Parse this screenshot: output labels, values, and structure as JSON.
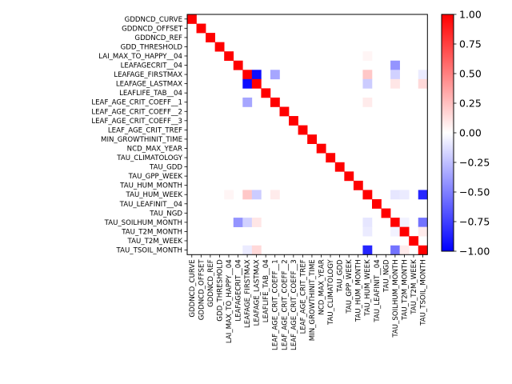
{
  "chart_data": {
    "type": "heatmap",
    "title": "",
    "xlabel": "",
    "ylabel": "",
    "labels": [
      "GDDNCD_CURVE",
      "GDDNCD_OFFSET",
      "GDDNCD_REF",
      "GDD_THRESHOLD",
      "LAI_MAX_TO_HAPPY__04",
      "LEAFAGECRIT__04",
      "LEAFAGE_FIRSTMAX",
      "LEAFAGE_LASTMAX",
      "LEAFLIFE_TAB__04",
      "LEAF_AGE_CRIT_COEFF__1",
      "LEAF_AGE_CRIT_COEFF__2",
      "LEAF_AGE_CRIT_COEFF__3",
      "LEAF_AGE_CRIT_TREF",
      "MIN_GROWTHINIT_TIME",
      "NCD_MAX_YEAR",
      "TAU_CLIMATOLOGY",
      "TAU_GDD",
      "TAU_GPP_WEEK",
      "TAU_HUM_MONTH",
      "TAU_HUM_WEEK",
      "TAU_LEAFINIT__04",
      "TAU_NGD",
      "TAU_SOILHUM_MONTH",
      "TAU_T2M_MONTH",
      "TAU_T2M_WEEK",
      "TAU_TSOIL_MONTH"
    ],
    "offdiagonal": [
      {
        "row": 5,
        "col": 22,
        "value": -0.42
      },
      {
        "row": 22,
        "col": 5,
        "value": -0.42
      },
      {
        "row": 6,
        "col": 7,
        "value": -0.95
      },
      {
        "row": 7,
        "col": 6,
        "value": -0.95
      },
      {
        "row": 6,
        "col": 9,
        "value": -0.35
      },
      {
        "row": 9,
        "col": 6,
        "value": -0.35
      },
      {
        "row": 6,
        "col": 19,
        "value": 0.22
      },
      {
        "row": 19,
        "col": 6,
        "value": 0.22
      },
      {
        "row": 6,
        "col": 22,
        "value": -0.18
      },
      {
        "row": 22,
        "col": 6,
        "value": -0.18
      },
      {
        "row": 6,
        "col": 25,
        "value": -0.08
      },
      {
        "row": 25,
        "col": 6,
        "value": -0.08
      },
      {
        "row": 7,
        "col": 19,
        "value": -0.2
      },
      {
        "row": 19,
        "col": 7,
        "value": -0.2
      },
      {
        "row": 7,
        "col": 22,
        "value": 0.1
      },
      {
        "row": 22,
        "col": 7,
        "value": 0.1
      },
      {
        "row": 7,
        "col": 25,
        "value": 0.15
      },
      {
        "row": 25,
        "col": 7,
        "value": 0.15
      },
      {
        "row": 9,
        "col": 19,
        "value": 0.08
      },
      {
        "row": 19,
        "col": 9,
        "value": 0.08
      },
      {
        "row": 19,
        "col": 22,
        "value": -0.1
      },
      {
        "row": 22,
        "col": 19,
        "value": -0.1
      },
      {
        "row": 19,
        "col": 23,
        "value": -0.08
      },
      {
        "row": 23,
        "col": 19,
        "value": -0.08
      },
      {
        "row": 19,
        "col": 25,
        "value": -0.85
      },
      {
        "row": 25,
        "col": 19,
        "value": -0.85
      },
      {
        "row": 22,
        "col": 25,
        "value": -0.55
      },
      {
        "row": 25,
        "col": 22,
        "value": -0.55
      },
      {
        "row": 22,
        "col": 23,
        "value": -0.05
      },
      {
        "row": 23,
        "col": 22,
        "value": -0.05
      },
      {
        "row": 23,
        "col": 25,
        "value": 0.08
      },
      {
        "row": 25,
        "col": 23,
        "value": 0.08
      },
      {
        "row": 4,
        "col": 19,
        "value": 0.04
      },
      {
        "row": 19,
        "col": 4,
        "value": 0.04
      }
    ],
    "diagonal_value": 1.0,
    "colormap": "bwr",
    "vmin": -1.0,
    "vmax": 1.0,
    "colorbar_ticks": [
      "1.00",
      "0.75",
      "0.50",
      "0.25",
      "0.00",
      "−0.25",
      "−0.50",
      "−0.75",
      "−1.00"
    ],
    "colorbar_values": [
      1.0,
      0.75,
      0.5,
      0.25,
      0.0,
      -0.25,
      -0.5,
      -0.75,
      -1.0
    ],
    "colors": {
      "low": "#0000ff",
      "mid": "#ffffff",
      "high": "#ff0000"
    }
  }
}
